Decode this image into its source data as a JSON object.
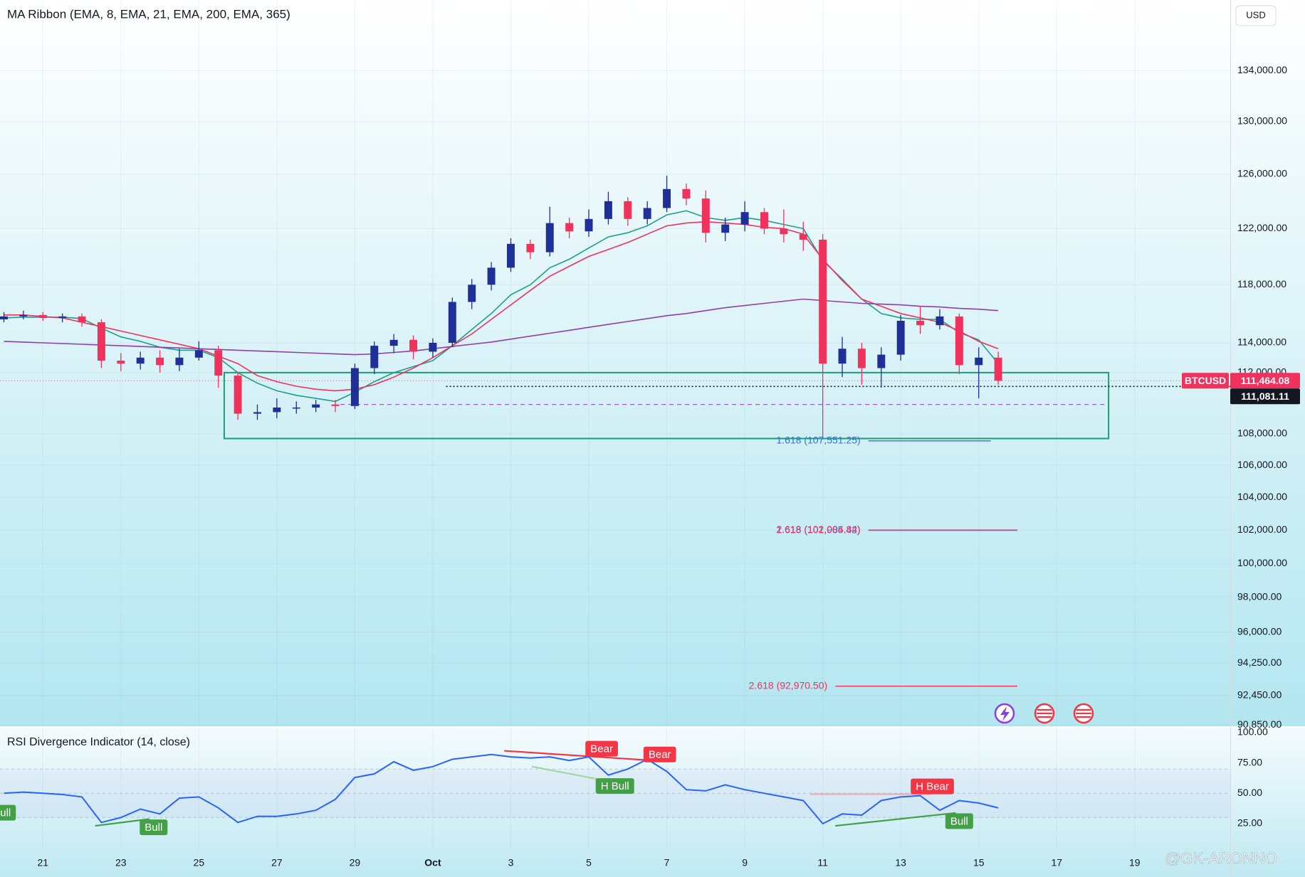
{
  "header": {
    "currency": "USD"
  },
  "chart_data": [
    {
      "type": "candlestick",
      "title": "MA Ribbon (EMA, 8, EMA, 21, EMA, 200, EMA, 365)",
      "symbol": "BTCUSD",
      "x": [
        20,
        20.5,
        21,
        21.5,
        22,
        22.5,
        23,
        23.5,
        24,
        24.5,
        25,
        25.5,
        26,
        26.5,
        27,
        27.5,
        28,
        28.5,
        29,
        29.5,
        30,
        30.5,
        31,
        31.5,
        32,
        32.5,
        33,
        33.5,
        34,
        34.5,
        35,
        35.5,
        36,
        36.5,
        37,
        37.5,
        38,
        38.5,
        39,
        39.5,
        40,
        40.5,
        41,
        41.5,
        42,
        42.5,
        43,
        43.5,
        44,
        44.5,
        45,
        45.5
      ],
      "open": [
        115600,
        115800,
        115900,
        115700,
        115800,
        115400,
        112800,
        112600,
        113000,
        112500,
        113000,
        113500,
        111800,
        109300,
        109400,
        109700,
        109700,
        109900,
        109800,
        112300,
        113800,
        114200,
        113400,
        114000,
        116800,
        118000,
        119200,
        120900,
        120300,
        122400,
        121800,
        122700,
        124000,
        122700,
        123500,
        124900,
        124200,
        121700,
        122300,
        123200,
        122000,
        121600,
        121200,
        112600,
        113600,
        112300,
        113200,
        115500,
        115200,
        115800,
        112500,
        113000
      ],
      "high": [
        116100,
        116200,
        116100,
        116000,
        116000,
        115600,
        113300,
        113400,
        113500,
        113600,
        114100,
        113800,
        112000,
        109900,
        110300,
        110100,
        110200,
        110200,
        112600,
        114100,
        114600,
        114500,
        114300,
        117100,
        118400,
        119600,
        121300,
        121200,
        123600,
        122800,
        123400,
        124700,
        124300,
        124000,
        125900,
        125300,
        124800,
        122800,
        124000,
        123500,
        123400,
        122500,
        121600,
        114400,
        114000,
        113700,
        115900,
        116500,
        116300,
        116000,
        113700,
        113400
      ],
      "low": [
        115400,
        115600,
        115500,
        115400,
        115100,
        112300,
        112100,
        112200,
        112000,
        112100,
        112800,
        111000,
        108900,
        108900,
        109000,
        109300,
        109400,
        109400,
        109600,
        111900,
        113300,
        112900,
        113000,
        113700,
        116300,
        117600,
        118900,
        119800,
        120000,
        121300,
        121400,
        122300,
        122200,
        122300,
        123200,
        123700,
        121000,
        121100,
        121800,
        121600,
        121000,
        120400,
        107800,
        111700,
        111200,
        111000,
        112800,
        114600,
        114900,
        111900,
        110300,
        111200
      ],
      "close": [
        115800,
        115900,
        115700,
        115800,
        115400,
        112800,
        112600,
        113000,
        112500,
        113000,
        113500,
        111800,
        109300,
        109400,
        109700,
        109700,
        109900,
        109800,
        112300,
        113800,
        114200,
        113400,
        114000,
        116800,
        118000,
        119200,
        120900,
        120300,
        122400,
        121800,
        122700,
        124000,
        122700,
        123500,
        124900,
        124200,
        121700,
        122300,
        123200,
        122000,
        121600,
        121200,
        112600,
        113600,
        112300,
        113200,
        115500,
        115200,
        115800,
        112500,
        113000,
        111464.08
      ],
      "up_color": "#1e2f97",
      "down_color": "#f0325d",
      "lines": [
        {
          "color": "#1f9e89",
          "values": [
            115700,
            115750,
            115750,
            115750,
            115650,
            115000,
            114400,
            114100,
            113700,
            113500,
            113500,
            113000,
            112000,
            111300,
            110800,
            110500,
            110300,
            110100,
            110700,
            111400,
            112000,
            112400,
            112800,
            113800,
            114900,
            116000,
            117300,
            118000,
            119200,
            119800,
            120600,
            121400,
            121700,
            122200,
            123000,
            123300,
            122800,
            122600,
            122800,
            122600,
            122300,
            122000,
            119700,
            118400,
            117000,
            116000,
            115700,
            115600,
            115600,
            114700,
            114200,
            112600
          ]
        },
        {
          "color": "#f0325d",
          "values": [
            115900,
            115900,
            115800,
            115700,
            115400,
            115100,
            114800,
            114500,
            114200,
            113900,
            113600,
            113100,
            112600,
            111800,
            111400,
            111100,
            110900,
            110800,
            110900,
            111200,
            111700,
            112300,
            113000,
            113800,
            114600,
            115600,
            116600,
            117600,
            118600,
            119300,
            120000,
            120500,
            121000,
            121600,
            122200,
            122400,
            122500,
            122400,
            122300,
            122100,
            122000,
            121600,
            119800,
            118300,
            117000,
            116500,
            116000,
            115700,
            115400,
            114800,
            114100,
            113600
          ]
        },
        {
          "color": "#8e3fa8",
          "values": [
            114100,
            114050,
            114000,
            113950,
            113900,
            113850,
            113800,
            113750,
            113700,
            113650,
            113600,
            113550,
            113500,
            113450,
            113400,
            113350,
            113300,
            113250,
            113200,
            113250,
            113350,
            113450,
            113600,
            113750,
            113900,
            114050,
            114250,
            114450,
            114650,
            114850,
            115050,
            115250,
            115450,
            115650,
            115850,
            116000,
            116200,
            116400,
            116550,
            116700,
            116850,
            117000,
            116900,
            116800,
            116700,
            116650,
            116600,
            116500,
            116450,
            116350,
            116300,
            116200
          ]
        }
      ],
      "last_price": {
        "value": 111464.08,
        "label": "111,464.08"
      },
      "ref_price": {
        "value": 111081.11,
        "label": "111,081.11",
        "from": 31.34
      },
      "zone": {
        "x": [
          25.65,
          48.33
        ],
        "y": [
          107700,
          112000
        ],
        "color": "#1a9e78"
      },
      "dashed_level": {
        "value": 109900,
        "x": [
          28.63,
          48.25
        ],
        "color": "#a05cc0"
      },
      "fib_levels": [
        {
          "label": "1.618 (107,551.25)",
          "level": 107551.25,
          "color": "#3a6fd8",
          "x": [
            42.17,
            45.31
          ]
        },
        {
          "label": "1.618 (101,985.42)",
          "level": 101985.42,
          "color": "#3a6fd8",
          "x": [
            42.17,
            45.99
          ]
        },
        {
          "label": "2.618 (102,004.84)",
          "level": 102004.84,
          "color": "#f0325d",
          "x": [
            42.17,
            45.99
          ]
        },
        {
          "label": "2.618 (92,970.50)",
          "level": 92970.5,
          "color": "#f0325d",
          "x": [
            41.32,
            45.99
          ]
        }
      ],
      "xlim": [
        19.9,
        51.45
      ],
      "xticks": [
        21,
        23,
        25,
        27,
        29,
        {
          "value": 31,
          "label": "Oct"
        },
        {
          "value": 33,
          "label": "3"
        },
        {
          "value": 35,
          "label": "5"
        },
        {
          "value": 37,
          "label": "7"
        },
        {
          "value": 39,
          "label": "9"
        },
        {
          "value": 41,
          "label": "11"
        },
        {
          "value": 43,
          "label": "13"
        },
        {
          "value": 45,
          "label": "15"
        },
        {
          "value": 47,
          "label": "17"
        },
        {
          "value": 49,
          "label": "19"
        }
      ],
      "ylim": [
        90785,
        139740
      ],
      "yticks": [
        {
          "value": 134000,
          "label": "134,000.00"
        },
        {
          "value": 130000,
          "label": "130,000.00"
        },
        {
          "value": 126000,
          "label": "126,000.00"
        },
        {
          "value": 122000,
          "label": "122,000.00"
        },
        {
          "value": 118000,
          "label": "118,000.00"
        },
        {
          "value": 114000,
          "label": "114,000.00"
        },
        {
          "value": 112000,
          "label": "112,000.00"
        },
        {
          "value": 108000,
          "label": "108,000.00"
        },
        {
          "value": 106000,
          "label": "106,000.00"
        },
        {
          "value": 104000,
          "label": "104,000.00"
        },
        {
          "value": 102000,
          "label": "102,000.00"
        },
        {
          "value": 100000,
          "label": "100,000.00"
        },
        {
          "value": 98000,
          "label": "98,000.00"
        },
        {
          "value": 96000,
          "label": "96,000.00"
        },
        {
          "value": 94250,
          "label": "94,250.00"
        },
        {
          "value": 92450,
          "label": "92,450.00"
        },
        {
          "value": 90850,
          "label": "90,850.00"
        }
      ],
      "log_scale": true,
      "grid": true
    },
    {
      "type": "line",
      "title": "RSI Divergence Indicator (14, close)",
      "color": "#2962ff",
      "values": [
        50,
        51,
        50,
        49,
        47,
        26,
        30,
        37,
        33,
        46,
        47,
        38,
        26,
        31,
        31,
        33,
        36,
        45,
        63,
        66,
        76,
        69,
        72,
        78,
        80,
        82,
        80,
        79,
        80,
        77,
        80,
        65,
        70,
        78,
        68,
        53,
        52,
        57,
        53,
        50,
        47,
        44,
        25,
        33,
        32,
        44,
        47,
        48,
        36,
        44,
        42,
        38
      ],
      "ylim": [
        3.3,
        103.5
      ],
      "yticks": [
        {
          "value": 100,
          "label": "100.00"
        },
        {
          "value": 75,
          "label": "75.00"
        },
        {
          "value": 50,
          "label": "50.00"
        },
        {
          "value": 25,
          "label": "25.00"
        }
      ],
      "band_levels": [
        70,
        50,
        30
      ],
      "divergences": [
        {
          "label": "Bull",
          "color": "#43a047",
          "label_x": 19.95,
          "label_y": 34
        },
        {
          "label": "Bull",
          "color": "#43a047",
          "x": [
            22.34,
            23.73
          ],
          "y": [
            23.2,
            28.8
          ],
          "line_color": "#43a047",
          "label_x": 23.84,
          "label_y": 22
        },
        {
          "label": "Bear",
          "color": "#f23645",
          "x": [
            32.83,
            36.74
          ],
          "y": [
            85,
            76.8
          ],
          "line_color": "#f23645",
          "label_x": 35.33,
          "label_y": 86.7
        },
        {
          "label": "Bear",
          "color": "#f23645",
          "label_x": 36.82,
          "label_y": 82
        },
        {
          "label": "H Bull",
          "color": "#43a047",
          "x": [
            33.54,
            35.78
          ],
          "y": [
            72,
            58.3
          ],
          "line_color": "#a5d6a7",
          "label_x": 35.67,
          "label_y": 56
        },
        {
          "label": "H Bear",
          "color": "#f23645",
          "x": [
            40.68,
            43.77
          ],
          "y": [
            49.3,
            49.3
          ],
          "line_color": "#f4a8b4",
          "label_x": 43.81,
          "label_y": 55.7
        },
        {
          "label": "Bull",
          "color": "#43a047",
          "x": [
            41.32,
            44.41
          ],
          "y": [
            23.2,
            33.8
          ],
          "line_color": "#43a047",
          "label_x": 44.5,
          "label_y": 27
        }
      ]
    }
  ],
  "watermark": "@GK-ARONNO"
}
